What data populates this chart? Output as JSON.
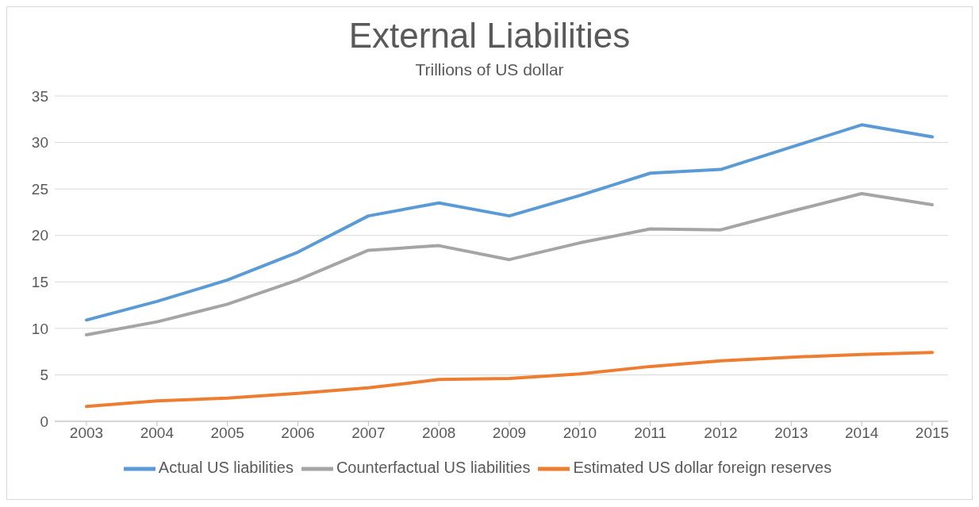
{
  "chart_data": {
    "type": "line",
    "title": "External Liabilities",
    "subtitle": "Trillions of US dollar",
    "categories": [
      "2003",
      "2004",
      "2005",
      "2006",
      "2007",
      "2008",
      "2009",
      "2010",
      "2011",
      "2012",
      "2013",
      "2014",
      "2015"
    ],
    "series": [
      {
        "name": "Actual US liabilities",
        "color": "#5b9bd5",
        "values": [
          10.9,
          12.9,
          15.2,
          18.2,
          22.1,
          23.5,
          22.1,
          24.3,
          26.7,
          27.1,
          29.5,
          31.9,
          30.6
        ]
      },
      {
        "name": "Estimated US dollar foreign reserves",
        "color": "#ed7d31",
        "values": [
          1.6,
          2.2,
          2.5,
          3.0,
          3.6,
          4.5,
          4.6,
          5.1,
          5.9,
          6.5,
          6.9,
          7.2,
          7.4
        ]
      },
      {
        "name": "Counterfactual US liabilities",
        "color": "#a5a5a5",
        "values": [
          9.3,
          10.7,
          12.6,
          15.2,
          18.4,
          18.9,
          17.4,
          19.2,
          20.7,
          20.6,
          22.6,
          24.5,
          23.3
        ]
      }
    ],
    "ylim": [
      0,
      35
    ],
    "yticks": [
      0,
      5,
      10,
      15,
      20,
      25,
      30,
      35
    ],
    "grid": "y",
    "legend": "bottom",
    "marker": "none",
    "line_style": "solid"
  }
}
